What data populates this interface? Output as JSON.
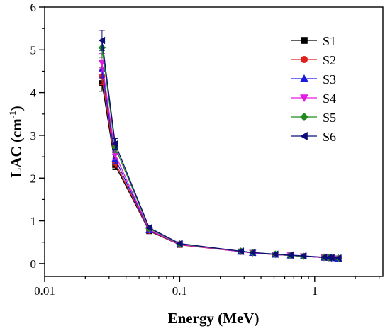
{
  "chart_data": {
    "type": "line",
    "title": "",
    "xlabel": "Energy (MeV)",
    "ylabel": "LAC (cm⁻¹)",
    "ylabel_main": "LAC (cm",
    "ylabel_sup": "-1",
    "ylabel_close": ")",
    "x_scale": "log",
    "xlim": [
      0.01,
      3.2
    ],
    "ylim": [
      -0.3,
      6
    ],
    "grid": false,
    "legend_position": "top-right",
    "x_ticks": [
      {
        "value": 0.01,
        "label": "0.01"
      },
      {
        "value": 0.1,
        "label": "0.1"
      },
      {
        "value": 1,
        "label": "1"
      }
    ],
    "y_ticks": [
      {
        "value": 0,
        "label": "0"
      },
      {
        "value": 1,
        "label": "1"
      },
      {
        "value": 2,
        "label": "2"
      },
      {
        "value": 3,
        "label": "3"
      },
      {
        "value": 4,
        "label": "4"
      },
      {
        "value": 5,
        "label": "5"
      },
      {
        "value": 6,
        "label": "6"
      }
    ],
    "x": [
      0.0266,
      0.0333,
      0.0595,
      0.1,
      0.284,
      0.347,
      0.511,
      0.662,
      0.826,
      1.173,
      1.275,
      1.333,
      1.5
    ],
    "series": [
      {
        "name": "S1",
        "color": "#000000",
        "marker": "square",
        "values": [
          4.22,
          2.3,
          0.76,
          0.44,
          0.28,
          0.25,
          0.21,
          0.19,
          0.17,
          0.14,
          0.14,
          0.13,
          0.12
        ]
      },
      {
        "name": "S2",
        "color": "#e0201b",
        "marker": "circle",
        "values": [
          4.38,
          2.36,
          0.77,
          0.44,
          0.28,
          0.25,
          0.21,
          0.19,
          0.17,
          0.14,
          0.14,
          0.13,
          0.12
        ]
      },
      {
        "name": "S3",
        "color": "#1a1adf",
        "marker": "triangle-up",
        "values": [
          4.55,
          2.45,
          0.78,
          0.45,
          0.28,
          0.25,
          0.21,
          0.19,
          0.17,
          0.14,
          0.14,
          0.13,
          0.12
        ]
      },
      {
        "name": "S4",
        "color": "#e31ae3",
        "marker": "triangle-down",
        "values": [
          4.7,
          2.55,
          0.79,
          0.45,
          0.28,
          0.25,
          0.21,
          0.19,
          0.17,
          0.14,
          0.14,
          0.13,
          0.12
        ]
      },
      {
        "name": "S5",
        "color": "#1f8a1f",
        "marker": "diamond",
        "values": [
          5.05,
          2.72,
          0.82,
          0.46,
          0.29,
          0.26,
          0.22,
          0.19,
          0.17,
          0.15,
          0.14,
          0.14,
          0.13
        ]
      },
      {
        "name": "S6",
        "color": "#0d0d7a",
        "marker": "triangle-left",
        "values": [
          5.22,
          2.8,
          0.84,
          0.47,
          0.29,
          0.26,
          0.22,
          0.2,
          0.18,
          0.15,
          0.14,
          0.14,
          0.13
        ]
      }
    ]
  }
}
